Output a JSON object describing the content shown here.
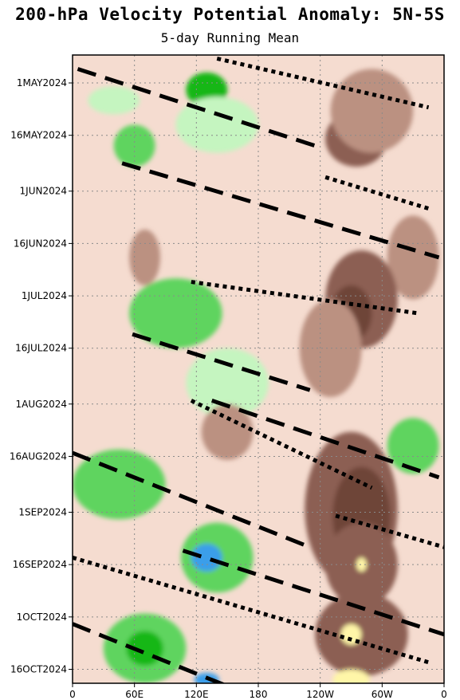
{
  "chart_data": {
    "type": "heatmap",
    "title": "200-hPa Velocity Potential Anomaly: 5N-5S",
    "subtitle": "5-day Running Mean",
    "x_ticks": [
      "0",
      "60E",
      "120E",
      "180",
      "120W",
      "60W",
      "0"
    ],
    "y_ticks": [
      "1MAY2024",
      "16MAY2024",
      "1JUN2024",
      "16JUN2024",
      "1JUL2024",
      "16JUL2024",
      "1AUG2024",
      "16AUG2024",
      "1SEP2024",
      "16SEP2024",
      "1OCT2024",
      "16OCT2024"
    ],
    "xlim": [
      0,
      360
    ],
    "x_tick_values": [
      0,
      60,
      120,
      180,
      240,
      300,
      360
    ],
    "y_tick_days": [
      0,
      15,
      31,
      46,
      61,
      76,
      92,
      107,
      123,
      138,
      153,
      168
    ],
    "ylim_days": [
      -8,
      172
    ],
    "grid": true,
    "colors": {
      "neg_strong": "#3a9eea",
      "neg_mid": "#16b716",
      "neg_mid2": "#5ed45e",
      "neg_weak": "#c5f5c0",
      "neutral": "#f5dcd0",
      "pos_weak": "#bb9181",
      "pos_mid": "#8c5e52",
      "pos_strong": "#6e4439",
      "pos_extreme": "#fff6a8",
      "lines": "#000000"
    },
    "anomaly_blobs": [
      {
        "lon": 130,
        "day": 2,
        "rx": 20,
        "ry": 5,
        "level": "neg_mid"
      },
      {
        "lon": 140,
        "day": 12,
        "rx": 40,
        "ry": 8,
        "level": "neg_weak"
      },
      {
        "lon": 40,
        "day": 5,
        "rx": 25,
        "ry": 4,
        "level": "neg_weak"
      },
      {
        "lon": 275,
        "day": 16,
        "rx": 30,
        "ry": 8,
        "level": "pos_mid"
      },
      {
        "lon": 290,
        "day": 8,
        "rx": 40,
        "ry": 12,
        "level": "pos_weak"
      },
      {
        "lon": 60,
        "day": 18,
        "rx": 20,
        "ry": 6,
        "level": "neg_mid2"
      },
      {
        "lon": 330,
        "day": 50,
        "rx": 25,
        "ry": 12,
        "level": "pos_weak"
      },
      {
        "lon": 70,
        "day": 50,
        "rx": 15,
        "ry": 8,
        "level": "pos_weak"
      },
      {
        "lon": 280,
        "day": 62,
        "rx": 35,
        "ry": 14,
        "level": "pos_mid"
      },
      {
        "lon": 270,
        "day": 66,
        "rx": 20,
        "ry": 8,
        "level": "pos_strong"
      },
      {
        "lon": 100,
        "day": 66,
        "rx": 45,
        "ry": 10,
        "level": "neg_mid2"
      },
      {
        "lon": 250,
        "day": 76,
        "rx": 30,
        "ry": 14,
        "level": "pos_weak"
      },
      {
        "lon": 150,
        "day": 86,
        "rx": 40,
        "ry": 10,
        "level": "neg_weak"
      },
      {
        "lon": 150,
        "day": 100,
        "rx": 25,
        "ry": 8,
        "level": "pos_weak"
      },
      {
        "lon": 330,
        "day": 104,
        "rx": 25,
        "ry": 8,
        "level": "neg_mid2"
      },
      {
        "lon": 270,
        "day": 122,
        "rx": 45,
        "ry": 22,
        "level": "pos_mid"
      },
      {
        "lon": 280,
        "day": 124,
        "rx": 28,
        "ry": 14,
        "level": "pos_strong"
      },
      {
        "lon": 45,
        "day": 115,
        "rx": 45,
        "ry": 10,
        "level": "neg_mid2"
      },
      {
        "lon": 140,
        "day": 136,
        "rx": 35,
        "ry": 10,
        "level": "neg_mid2"
      },
      {
        "lon": 130,
        "day": 136,
        "rx": 15,
        "ry": 4,
        "level": "neg_strong"
      },
      {
        "lon": 280,
        "day": 138,
        "rx": 35,
        "ry": 12,
        "level": "pos_mid"
      },
      {
        "lon": 280,
        "day": 138,
        "rx": 5,
        "ry": 2,
        "level": "pos_extreme"
      },
      {
        "lon": 280,
        "day": 158,
        "rx": 45,
        "ry": 12,
        "level": "pos_mid"
      },
      {
        "lon": 270,
        "day": 158,
        "rx": 10,
        "ry": 3,
        "level": "pos_extreme"
      },
      {
        "lon": 70,
        "day": 162,
        "rx": 40,
        "ry": 10,
        "level": "neg_mid2"
      },
      {
        "lon": 70,
        "day": 162,
        "rx": 18,
        "ry": 5,
        "level": "neg_mid"
      },
      {
        "lon": 270,
        "day": 171,
        "rx": 18,
        "ry": 3,
        "level": "pos_extreme"
      },
      {
        "lon": 130,
        "day": 171,
        "rx": 12,
        "ry": 2,
        "level": "neg_strong"
      }
    ],
    "dashed_lines": [
      {
        "lon1": 5,
        "day1": -4,
        "lon2": 235,
        "day2": 18
      },
      {
        "lon1": 48,
        "day1": 23,
        "lon2": 355,
        "day2": 50
      },
      {
        "lon1": 58,
        "day1": 72,
        "lon2": 230,
        "day2": 88
      },
      {
        "lon1": 135,
        "day1": 91,
        "lon2": 355,
        "day2": 113
      },
      {
        "lon1": 0,
        "day1": 106,
        "lon2": 230,
        "day2": 133
      },
      {
        "lon1": 107,
        "day1": 134,
        "lon2": 360,
        "day2": 158
      },
      {
        "lon1": 0,
        "day1": 155,
        "lon2": 160,
        "day2": 174
      }
    ],
    "dotted_lines": [
      {
        "lon1": 140,
        "day1": -7,
        "lon2": 345,
        "day2": 7
      },
      {
        "lon1": 245,
        "day1": 27,
        "lon2": 345,
        "day2": 36
      },
      {
        "lon1": 115,
        "day1": 57,
        "lon2": 335,
        "day2": 66
      },
      {
        "lon1": 115,
        "day1": 91,
        "lon2": 290,
        "day2": 116
      },
      {
        "lon1": 255,
        "day1": 124,
        "lon2": 360,
        "day2": 133
      },
      {
        "lon1": 0,
        "day1": 136,
        "lon2": 345,
        "day2": 166
      }
    ]
  }
}
